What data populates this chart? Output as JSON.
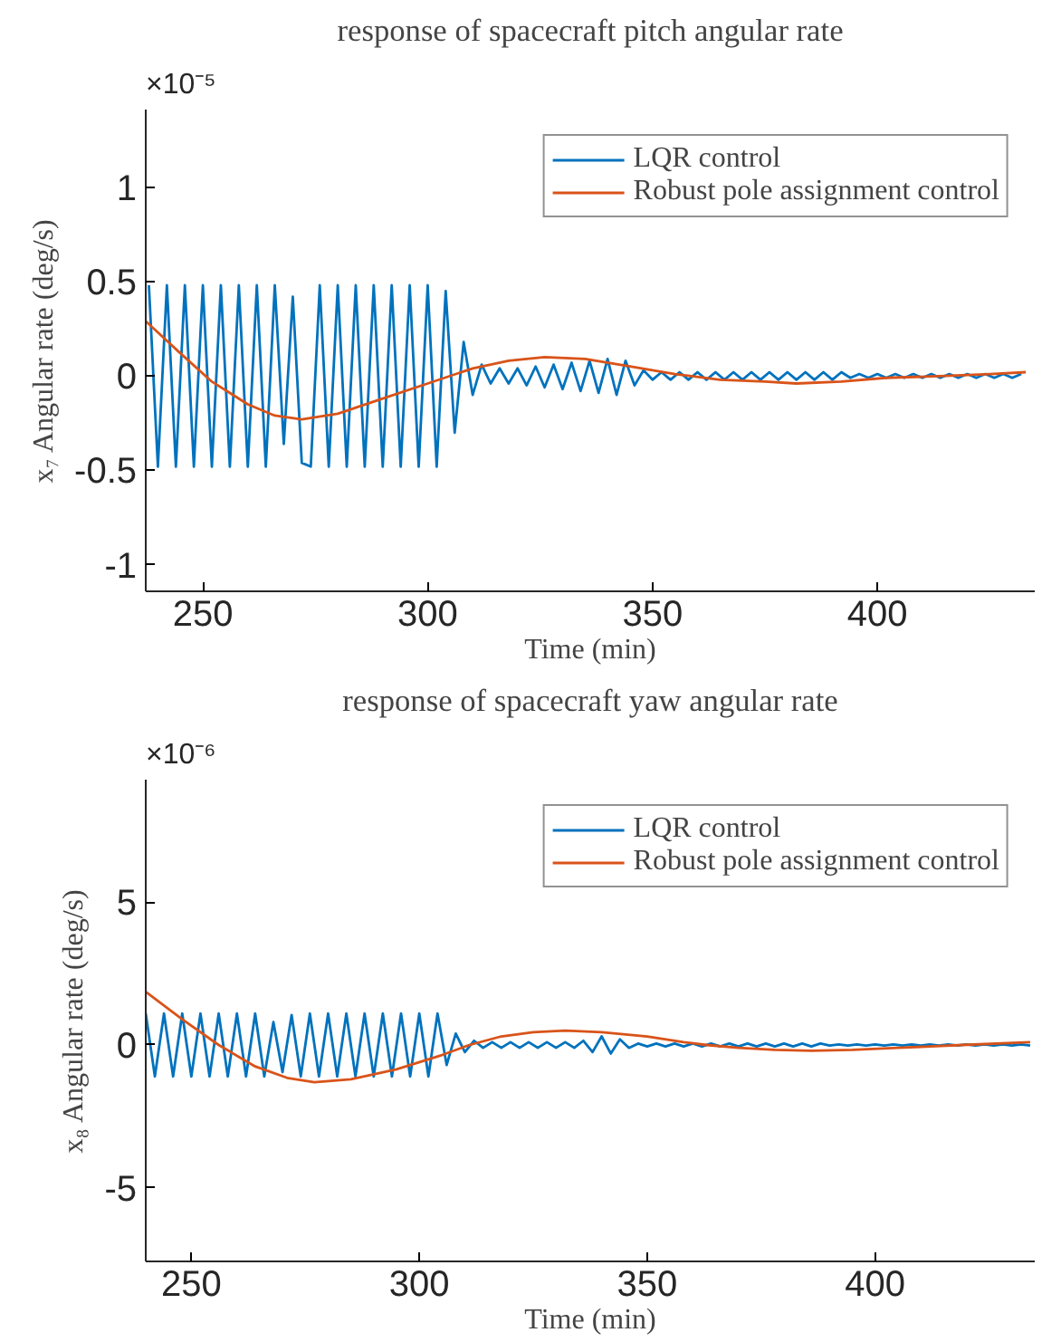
{
  "chart_data": [
    {
      "type": "line",
      "title": "response of spacecraft pitch angular rate",
      "xlabel": "Time (min)",
      "ylabel": "x₇ Angular rate (deg/s)",
      "annotations": [
        "×10⁻⁵"
      ],
      "xlim": [
        237.3,
        435
      ],
      "xticks": [
        250,
        300,
        350,
        400
      ],
      "ylim": [
        -1.14,
        1.41
      ],
      "yticks": [
        -1,
        -0.5,
        0,
        0.5,
        1
      ],
      "grid": false,
      "legend": "top right",
      "series": [
        {
          "name": "LQR control",
          "color": "#0072bd",
          "x": [
            238,
            240,
            242,
            244,
            246,
            248,
            250,
            252,
            254,
            256,
            258,
            260,
            262,
            264,
            266,
            268,
            270,
            272,
            274,
            276,
            278,
            280,
            282,
            284,
            286,
            288,
            290,
            292,
            294,
            296,
            298,
            300,
            302,
            304,
            306,
            308,
            310,
            312,
            314,
            316,
            318,
            320,
            322,
            324,
            326,
            328,
            330,
            332,
            334,
            336,
            338,
            340,
            342,
            344,
            346,
            348,
            350,
            352,
            354,
            356,
            358,
            360,
            362,
            364,
            366,
            368,
            370,
            372,
            374,
            376,
            378,
            380,
            382,
            384,
            386,
            388,
            390,
            392,
            394,
            396,
            398,
            400,
            402,
            404,
            406,
            408,
            410,
            412,
            414,
            416,
            418,
            420,
            422,
            424,
            426,
            428,
            430,
            432
          ],
          "values": [
            0.48,
            -0.48,
            0.48,
            -0.48,
            0.48,
            -0.48,
            0.48,
            -0.48,
            0.48,
            -0.48,
            0.48,
            -0.48,
            0.48,
            -0.48,
            0.48,
            -0.36,
            0.42,
            -0.46,
            -0.48,
            0.48,
            -0.48,
            0.48,
            -0.48,
            0.48,
            -0.48,
            0.48,
            -0.48,
            0.48,
            -0.48,
            0.48,
            -0.48,
            0.48,
            -0.48,
            0.45,
            -0.3,
            0.18,
            -0.1,
            0.06,
            -0.04,
            0.04,
            -0.04,
            0.04,
            -0.05,
            0.05,
            -0.06,
            0.06,
            -0.07,
            0.07,
            -0.08,
            0.08,
            -0.09,
            0.09,
            -0.1,
            0.08,
            -0.05,
            0.03,
            -0.02,
            0.02,
            -0.02,
            0.02,
            -0.02,
            0.02,
            -0.02,
            0.02,
            -0.02,
            0.02,
            -0.02,
            0.02,
            -0.02,
            0.02,
            -0.02,
            0.02,
            -0.02,
            0.02,
            -0.02,
            0.02,
            -0.02,
            0.02,
            -0.01,
            0.01,
            -0.01,
            0.01,
            -0.01,
            0.01,
            -0.01,
            0.01,
            -0.01,
            0.01,
            -0.01,
            0.01,
            -0.01,
            0.01,
            -0.01,
            0.01,
            -0.01,
            0.01,
            -0.01,
            0.01
          ]
        },
        {
          "name": "Robust pole assignment control",
          "color": "#d95319",
          "x": [
            237.3,
            245,
            252,
            260,
            266,
            272,
            280,
            290,
            300,
            310,
            318,
            326,
            335,
            345,
            355,
            365,
            375,
            382,
            392,
            402,
            415,
            425,
            433
          ],
          "values": [
            0.29,
            0.12,
            -0.03,
            -0.15,
            -0.21,
            -0.23,
            -0.2,
            -0.12,
            -0.04,
            0.04,
            0.08,
            0.1,
            0.09,
            0.05,
            0.01,
            -0.02,
            -0.03,
            -0.04,
            -0.03,
            -0.01,
            0.0,
            0.01,
            0.02
          ]
        }
      ]
    },
    {
      "type": "line",
      "title": "response of spacecraft yaw angular rate",
      "xlabel": "Time (min)",
      "ylabel": "x₈ Angular rate (deg/s)",
      "annotations": [
        "×10⁻⁶"
      ],
      "xlim": [
        240,
        435
      ],
      "xticks": [
        250,
        300,
        350,
        400
      ],
      "ylim": [
        -7.57,
        9.28
      ],
      "yticks": [
        -5,
        0,
        5
      ],
      "grid": false,
      "legend": "top right",
      "series": [
        {
          "name": "LQR control",
          "color": "#0072bd",
          "x": [
            240,
            242,
            244,
            246,
            248,
            250,
            252,
            254,
            256,
            258,
            260,
            262,
            264,
            266,
            268,
            270,
            272,
            274,
            276,
            278,
            280,
            282,
            284,
            286,
            288,
            290,
            292,
            294,
            296,
            298,
            300,
            302,
            304,
            306,
            308,
            310,
            312,
            314,
            316,
            318,
            320,
            322,
            324,
            326,
            328,
            330,
            332,
            334,
            336,
            338,
            340,
            342,
            344,
            346,
            348,
            350,
            352,
            354,
            356,
            358,
            360,
            362,
            364,
            366,
            368,
            370,
            372,
            374,
            376,
            378,
            380,
            382,
            384,
            386,
            388,
            390,
            392,
            394,
            396,
            398,
            400,
            402,
            404,
            406,
            408,
            410,
            412,
            414,
            416,
            418,
            420,
            422,
            424,
            426,
            428,
            430,
            432,
            434
          ],
          "values": [
            1.1,
            -1.1,
            1.1,
            -1.1,
            1.1,
            -1.1,
            1.1,
            -1.1,
            1.1,
            -1.1,
            1.1,
            -1.1,
            1.1,
            -1.1,
            0.8,
            -0.95,
            1.05,
            -1.1,
            1.1,
            -1.1,
            1.1,
            -1.1,
            1.1,
            -1.1,
            1.1,
            -1.1,
            1.1,
            -1.1,
            1.1,
            -1.1,
            1.1,
            -1.1,
            1.1,
            -0.7,
            0.4,
            -0.25,
            0.15,
            -0.1,
            0.1,
            -0.1,
            0.1,
            -0.1,
            0.1,
            -0.1,
            0.1,
            -0.1,
            0.1,
            -0.1,
            0.15,
            -0.25,
            0.3,
            -0.3,
            0.2,
            -0.1,
            0.05,
            -0.05,
            0.05,
            -0.05,
            0.05,
            -0.05,
            0.05,
            -0.05,
            0.05,
            -0.05,
            0.05,
            -0.05,
            0.05,
            -0.05,
            0.05,
            -0.05,
            0.05,
            -0.05,
            0.05,
            -0.05,
            0.05,
            -0.02,
            0.02,
            -0.02,
            0.02,
            -0.02,
            0.02,
            -0.02,
            0.02,
            -0.02,
            0.02,
            -0.02,
            0.02,
            -0.02,
            0.02,
            -0.02,
            0.02,
            -0.02,
            0.02,
            -0.02,
            0.02,
            -0.02,
            0.02,
            -0.02
          ]
        },
        {
          "name": "Robust pole assignment control",
          "color": "#d95319",
          "x": [
            240.1,
            248,
            256,
            264,
            271,
            277,
            285,
            295,
            305,
            311,
            318,
            325,
            332,
            340,
            350,
            358,
            363,
            370,
            378,
            386,
            395,
            405,
            419,
            434
          ],
          "values": [
            1.85,
            0.9,
            0.0,
            -0.75,
            -1.15,
            -1.3,
            -1.2,
            -0.85,
            -0.35,
            0.0,
            0.3,
            0.45,
            0.5,
            0.45,
            0.3,
            0.1,
            0.0,
            -0.1,
            -0.17,
            -0.2,
            -0.17,
            -0.1,
            0.0,
            0.1
          ]
        }
      ]
    }
  ]
}
